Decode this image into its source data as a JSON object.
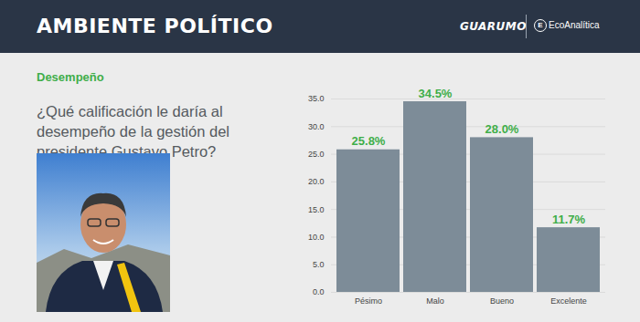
{
  "header": {
    "title": "AMBIENTE POLÍTICO",
    "logos": [
      "GUARUMO",
      "EcoAnalítica"
    ]
  },
  "chart_data": {
    "type": "bar",
    "subtitle": "Desempeño",
    "title": "¿Qué calificación le daría al desempeño de la gestión del presidente Gustavo Petro?",
    "categories": [
      "Pésimo",
      "Malo",
      "Bueno",
      "Excelente"
    ],
    "values": [
      25.8,
      34.5,
      28.0,
      11.7
    ],
    "value_labels": [
      "25.8%",
      "34.5%",
      "28.0%",
      "11.7%"
    ],
    "data_labels": true,
    "color": "#7d8c98",
    "ylim": [
      0,
      35
    ],
    "yticks": [
      {
        "value": 0,
        "label": "0.0"
      },
      {
        "value": 5,
        "label": "5.0"
      },
      {
        "value": 10,
        "label": "10.0"
      },
      {
        "value": 15,
        "label": "15.0"
      },
      {
        "value": 20,
        "label": "20.0"
      },
      {
        "value": 25,
        "label": "25.0"
      },
      {
        "value": 30,
        "label": "30.0"
      },
      {
        "value": 35,
        "label": "35.0"
      }
    ],
    "grid": true
  }
}
